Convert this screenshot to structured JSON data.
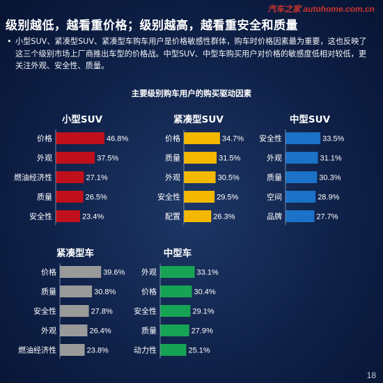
{
  "header": {
    "title": "级别越低，越看重价格；级别越高，越看重安全和质量",
    "watermark": "汽车之家 autohome.com.cn"
  },
  "bullet": {
    "marker": "•",
    "text": "小型SUV、紧凑型SUV、紧凑型车购车用户是价格敏感性群体，购车时价格因素最为重要，这也反映了这三个级别市场上厂商推出车型的价格战。中型SUV、中型车购买用户对价格的敏感度低相对较低，更关注外观、安全性、质量。"
  },
  "subtitle": "主要级别购车用户的购买驱动因素",
  "page_number": "18",
  "colors": {
    "red": "#c0101b",
    "yellow": "#f4b800",
    "blue": "#1b72c6",
    "gray": "#9a9a9a",
    "green": "#17a354"
  },
  "chart_data": [
    {
      "type": "bar",
      "title": "小型SUV",
      "color": "#c0101b",
      "categories": [
        "价格",
        "外观",
        "燃油经济性",
        "质量",
        "安全性"
      ],
      "values": [
        46.8,
        37.5,
        27.1,
        26.5,
        23.4
      ],
      "labels": [
        "46.8%",
        "37.5%",
        "27.1%",
        "26.5%",
        "23.4%"
      ]
    },
    {
      "type": "bar",
      "title": "紧凑型SUV",
      "color": "#f4b800",
      "categories": [
        "价格",
        "质量",
        "外观",
        "安全性",
        "配置"
      ],
      "values": [
        34.7,
        31.5,
        30.5,
        29.5,
        26.3
      ],
      "labels": [
        "34.7%",
        "31.5%",
        "30.5%",
        "29.5%",
        "26.3%"
      ]
    },
    {
      "type": "bar",
      "title": "中型SUV",
      "color": "#1b72c6",
      "categories": [
        "安全性",
        "外观",
        "质量",
        "空间",
        "品牌"
      ],
      "values": [
        33.5,
        31.1,
        30.3,
        28.9,
        27.7
      ],
      "labels": [
        "33.5%",
        "31.1%",
        "30.3%",
        "28.9%",
        "27.7%"
      ]
    },
    {
      "type": "bar",
      "title": "紧凑型车",
      "color": "#9a9a9a",
      "categories": [
        "价格",
        "质量",
        "安全性",
        "外观",
        "燃油经济性"
      ],
      "values": [
        39.6,
        30.8,
        27.8,
        26.4,
        23.8
      ],
      "labels": [
        "39.6%",
        "30.8%",
        "27.8%",
        "26.4%",
        "23.8%"
      ]
    },
    {
      "type": "bar",
      "title": "中型车",
      "color": "#17a354",
      "categories": [
        "外观",
        "价格",
        "安全性",
        "质量",
        "动力性"
      ],
      "values": [
        33.1,
        30.4,
        29.1,
        27.9,
        25.1
      ],
      "labels": [
        "33.1%",
        "30.4%",
        "29.1%",
        "27.9%",
        "25.1%"
      ]
    }
  ]
}
